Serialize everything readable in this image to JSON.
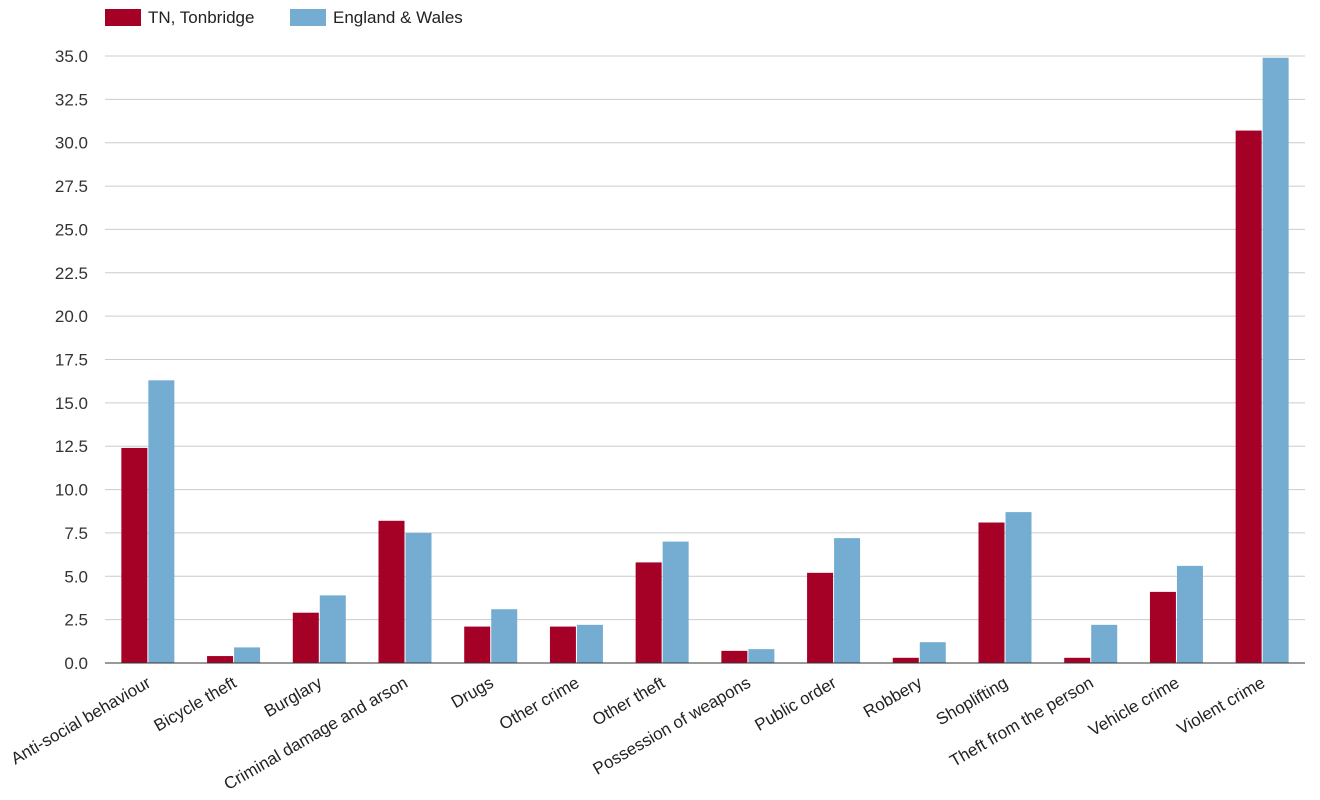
{
  "chart_data": {
    "type": "bar",
    "title": "",
    "xlabel": "",
    "ylabel": "",
    "ylim": [
      0,
      35
    ],
    "y_ticks": [
      "0.0",
      "2.5",
      "5.0",
      "7.5",
      "10.0",
      "12.5",
      "15.0",
      "17.5",
      "20.0",
      "22.5",
      "25.0",
      "27.5",
      "30.0",
      "32.5",
      "35.0"
    ],
    "grid": true,
    "legend_position": "top-left",
    "categories": [
      "Anti-social behaviour",
      "Bicycle theft",
      "Burglary",
      "Criminal damage and arson",
      "Drugs",
      "Other crime",
      "Other theft",
      "Possession of weapons",
      "Public order",
      "Robbery",
      "Shoplifting",
      "Theft from the person",
      "Vehicle crime",
      "Violent crime"
    ],
    "series": [
      {
        "name": "TN, Tonbridge",
        "color": "#a50026",
        "values": [
          12.4,
          0.4,
          2.9,
          8.2,
          2.1,
          2.1,
          5.8,
          0.7,
          5.2,
          0.3,
          8.1,
          0.3,
          4.1,
          30.7
        ]
      },
      {
        "name": "England & Wales",
        "color": "#74add1",
        "values": [
          16.3,
          0.9,
          3.9,
          7.5,
          3.1,
          2.2,
          7.0,
          0.8,
          7.2,
          1.2,
          8.7,
          2.2,
          5.6,
          34.9
        ]
      }
    ]
  }
}
